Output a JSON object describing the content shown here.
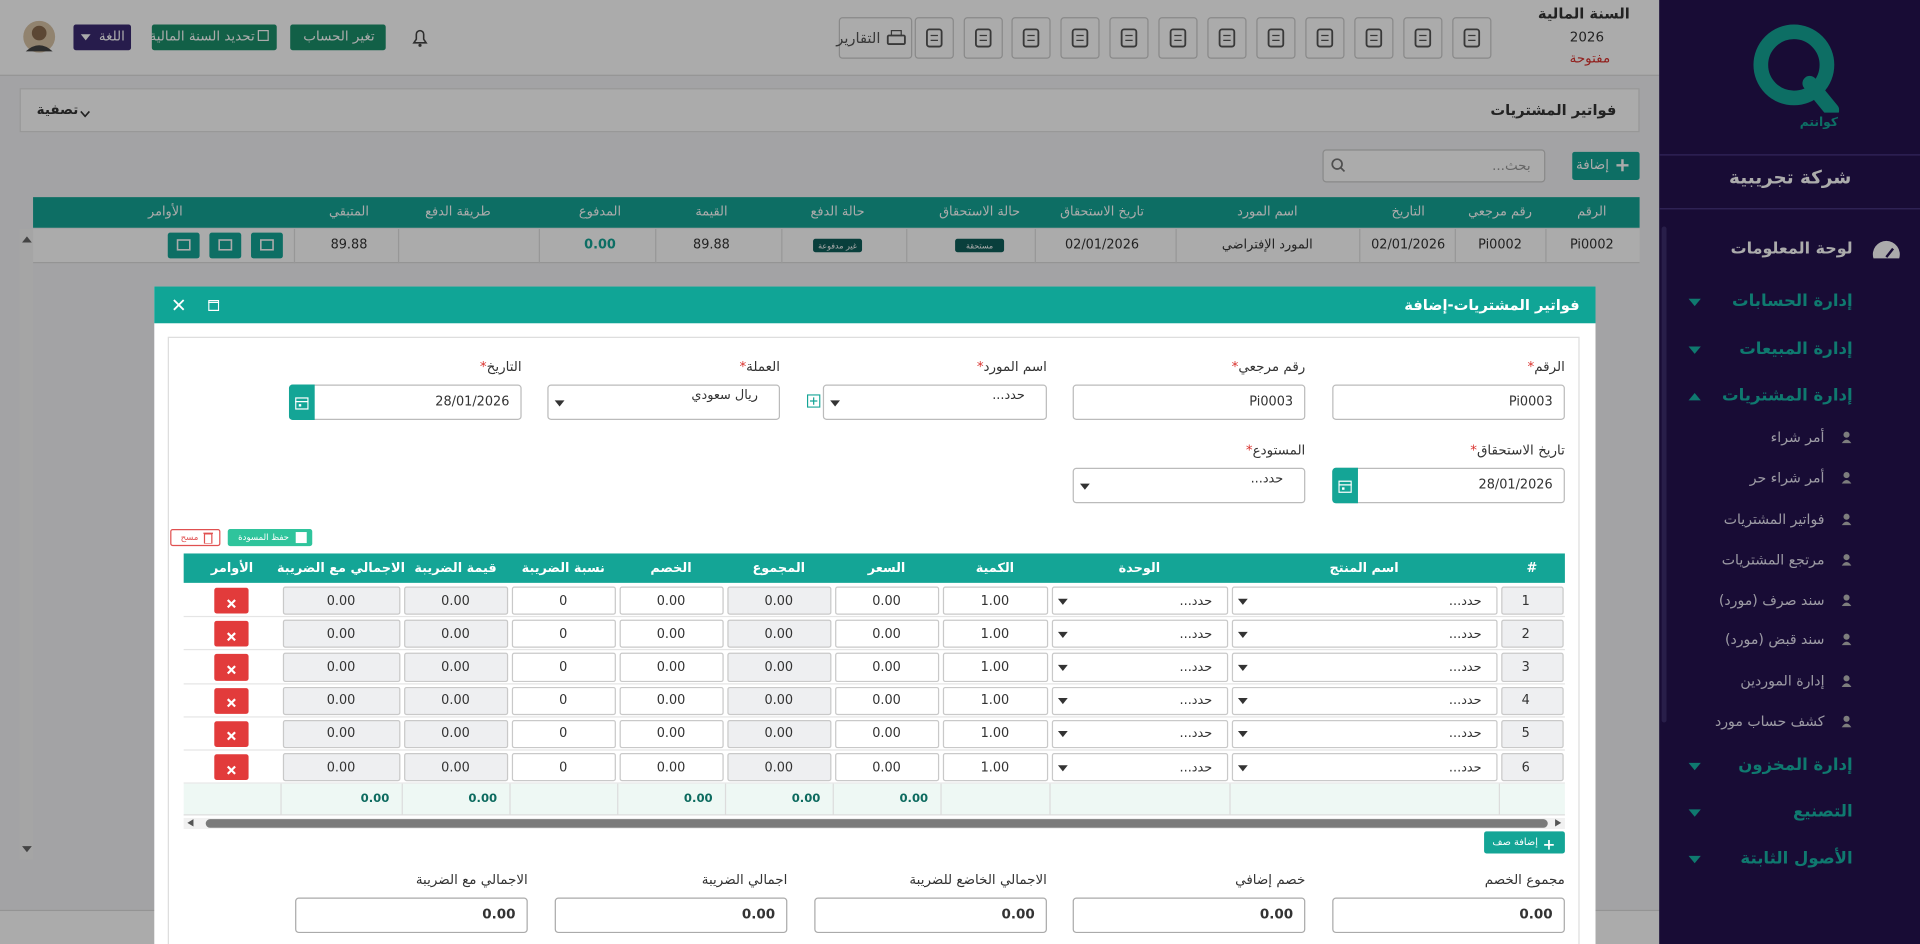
{
  "sidebar": {
    "logo_text": "كوانتم",
    "company": "شركة تجريبية",
    "dashboard": "لوحة المعلومات",
    "menu": [
      {
        "label": "إدارة الحسابات"
      },
      {
        "label": "إدارة المبيعات"
      },
      {
        "label": "إدارة المشتريات",
        "items": [
          "أمر شراء",
          "أمر شراء حر",
          "فواتير المشتريات",
          "مرتجع المشتريات",
          "سند صرف (مورد)",
          "سند قبض (مورد)",
          "إدارة الموردين",
          "كشف حساب مورد"
        ]
      },
      {
        "label": "إدارة المخزون"
      },
      {
        "label": "التصنيع"
      },
      {
        "label": "الأصول الثابتة"
      }
    ]
  },
  "topbar": {
    "fiscal_year_label": "السنة المالية",
    "fiscal_year": "2026",
    "status": "مفتوحة",
    "reports": "التقارير",
    "change_account": "تغير الحساب",
    "set_fiscal_year": "تحديد السنة المالية",
    "language": "اللغة"
  },
  "page": {
    "title": "فواتير المشتريات",
    "filter": "تصفية",
    "add": "إضافة",
    "search_placeholder": "بحث..."
  },
  "list_table": {
    "columns": [
      "الرقم",
      "رقم مرجعي",
      "التاريخ",
      "اسم المورد",
      "تاريخ الاستحقاق",
      "حالة الاستحقاق",
      "حالة الدفع",
      "القيمة",
      "المدفوع",
      "طريقة الدفع",
      "المتبقي",
      "الأوامر"
    ],
    "rows": [
      [
        "Pi0002",
        "Pi0002",
        "02/01/2026",
        "المورد الإفتراضي",
        "02/01/2026",
        "مستحقة",
        "غير مدفوعة",
        "89.88",
        "0.00",
        null,
        "89.88",
        null
      ]
    ]
  },
  "modal": {
    "title": "فواتير المشتريات-إضافة",
    "required_mark": "*",
    "fields": [
      {
        "label": "الرقم",
        "value": "Pi0003"
      },
      {
        "label": "رقم مرجعي",
        "value": "Pi0003"
      },
      {
        "label": "اسم المورد",
        "value": "حدد..."
      },
      {
        "label": "العملة",
        "value": "ريال سعودي"
      },
      {
        "label": "التاريخ",
        "value": "28/01/2026"
      },
      {
        "label": "تاريخ الاستحقاق",
        "value": "28/01/2026"
      },
      {
        "label": "المستودع",
        "value": "حدد..."
      }
    ],
    "save_draft": "حفظ المسودة",
    "clear": "مسح",
    "items_table": {
      "columns": [
        "#",
        "اسم المنتج",
        "الوحدة",
        "الكمية",
        "السعر",
        "المجموع",
        "الخصم",
        "نسبة الضريبة",
        "قيمة الضريبة",
        "الاجمالي مع الضريبة",
        "الأوامر"
      ],
      "rows": [
        [
          "1",
          "حدد...",
          "حدد...",
          "1.00",
          "0.00",
          "0.00",
          "0.00",
          "0",
          "0.00",
          "0.00"
        ],
        [
          "2",
          "حدد...",
          "حدد...",
          "1.00",
          "0.00",
          "0.00",
          "0.00",
          "0",
          "0.00",
          "0.00"
        ],
        [
          "3",
          "حدد...",
          "حدد...",
          "1.00",
          "0.00",
          "0.00",
          "0.00",
          "0",
          "0.00",
          "0.00"
        ],
        [
          "4",
          "حدد...",
          "حدد...",
          "1.00",
          "0.00",
          "0.00",
          "0.00",
          "0",
          "0.00",
          "0.00"
        ],
        [
          "5",
          "حدد...",
          "حدد...",
          "1.00",
          "0.00",
          "0.00",
          "0.00",
          "0",
          "0.00",
          "0.00"
        ],
        [
          "6",
          "حدد...",
          "حدد...",
          "1.00",
          "0.00",
          "0.00",
          "0.00",
          "0",
          "0.00",
          "0.00"
        ]
      ],
      "totals": [
        null,
        null,
        null,
        null,
        "0.00",
        "0.00",
        "0.00",
        null,
        "0.00",
        "0.00",
        null
      ]
    },
    "add_row": "إضافة صف",
    "summary": [
      {
        "label": "مجموع الخصم",
        "value": "0.00"
      },
      {
        "label": "خصم إضافي",
        "value": "0.00"
      },
      {
        "label": "الاجمالي الخاضع للضريبة",
        "value": "0.00"
      },
      {
        "label": "اجمالي الضريبة",
        "value": "0.00"
      },
      {
        "label": "الاجمالي مع الضريبة",
        "value": "0.00"
      }
    ]
  }
}
